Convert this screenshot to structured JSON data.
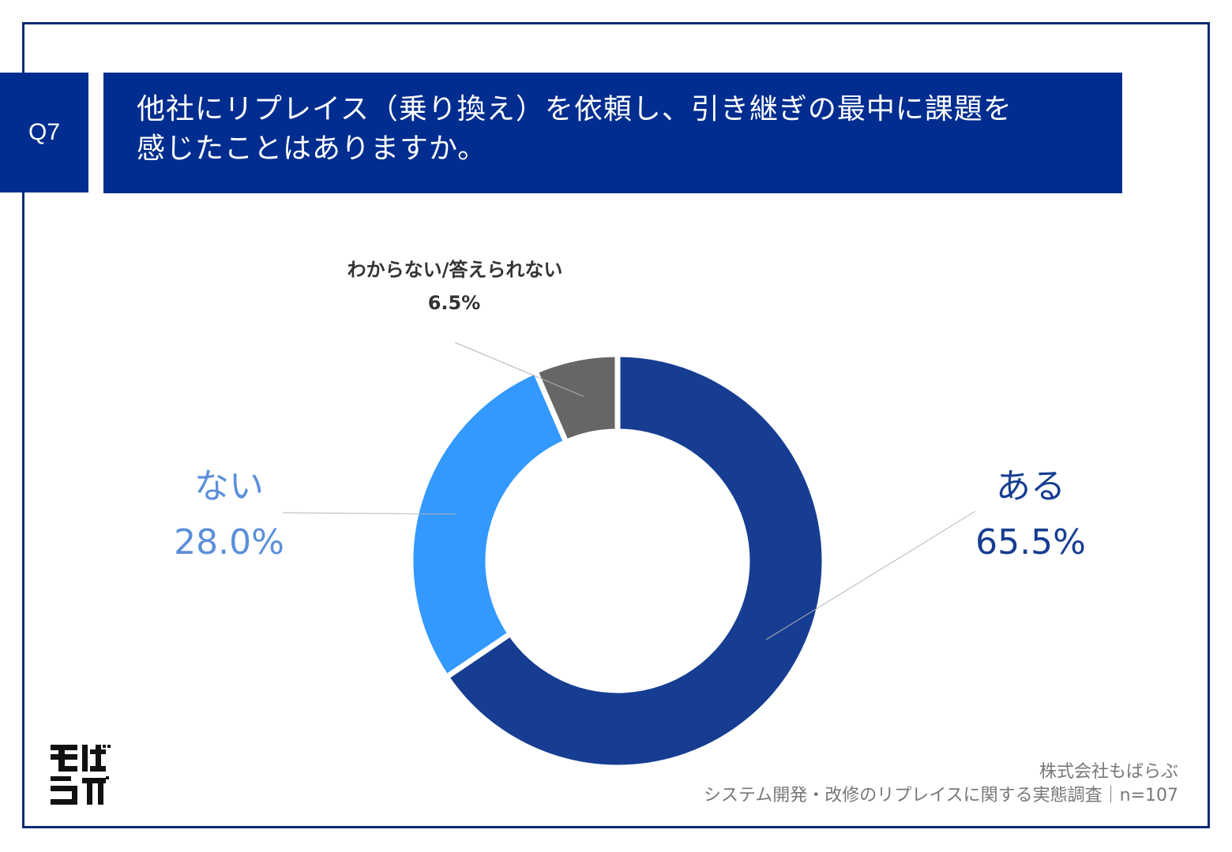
{
  "badge": "Q7",
  "title": {
    "line1": "他社にリプレイス（乗り換え）を依頼し、引き継ぎの最中に課題を",
    "line2": "感じたことはありますか。"
  },
  "chart_data": {
    "type": "pie",
    "style": "donut",
    "title": "他社にリプレイス（乗り換え）を依頼し、引き継ぎの最中に課題を感じたことはありますか。",
    "categories": [
      "ある",
      "ない",
      "わからない/答えられない"
    ],
    "values": [
      65.5,
      28.0,
      6.5
    ],
    "value_labels": [
      "65.5%",
      "28.0%",
      "6.5%"
    ],
    "colors": [
      "#163d92",
      "#3399ff",
      "#666666"
    ],
    "start": "12 o'clock, clockwise"
  },
  "footer": {
    "company": "株式会社もばらぶ",
    "survey": "システム開発・改修のリプレイスに関する実態調査｜n=107"
  },
  "logo": {
    "text": "もばらぶ",
    "icon": "mobalab-logo-icon"
  }
}
